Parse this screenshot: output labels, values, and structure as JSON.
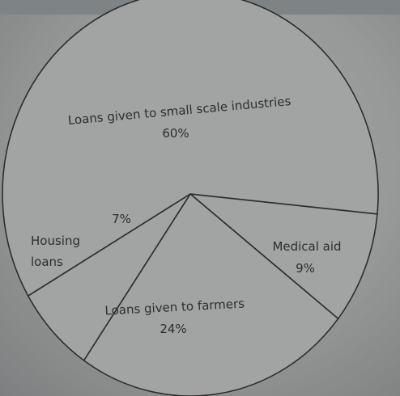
{
  "chart_data": {
    "type": "pie",
    "title": "",
    "slices": [
      {
        "label_lines": [
          "Loans given to small scale industries"
        ],
        "percent_label": "60%",
        "value": 60
      },
      {
        "label_lines": [
          "Medical aid"
        ],
        "percent_label": "9%",
        "value": 9
      },
      {
        "label_lines": [
          "Loans given to farmers"
        ],
        "percent_label": "24%",
        "value": 24
      },
      {
        "label_lines": [
          "Housing",
          "loans"
        ],
        "percent_label": "7%",
        "value": 7
      }
    ],
    "colors": {
      "fill": "#a2a4a3",
      "stroke": "#2c2c2c",
      "text": "#2d2d2d"
    }
  }
}
